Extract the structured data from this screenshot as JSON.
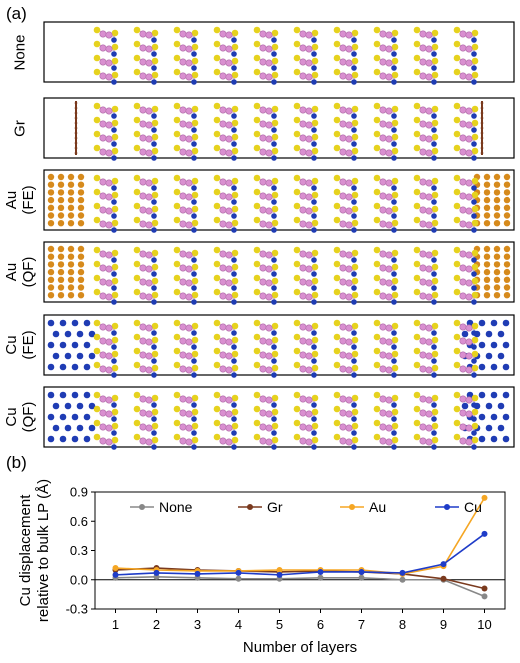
{
  "panel_a": {
    "label": "(a)",
    "rows": [
      {
        "label_lines": [
          "None"
        ],
        "left_electrode": "none",
        "right_electrode": "none"
      },
      {
        "label_lines": [
          "Gr"
        ],
        "left_electrode": "graphene",
        "right_electrode": "graphene"
      },
      {
        "label_lines": [
          "Au",
          "(FE)"
        ],
        "left_electrode": "gold",
        "right_electrode": "gold"
      },
      {
        "label_lines": [
          "Au",
          "(QF)"
        ],
        "left_electrode": "gold",
        "right_electrode": "gold"
      },
      {
        "label_lines": [
          "Cu",
          "(FE)"
        ],
        "left_electrode": "copper",
        "right_electrode": "copper"
      },
      {
        "label_lines": [
          "Cu",
          "(QF)"
        ],
        "left_electrode": "copper",
        "right_electrode": "copper"
      }
    ],
    "layer_count": 10,
    "colors": {
      "sulfur": "#e6d21e",
      "indium": "#d98fd0",
      "copper_atom": "#1f3cb4",
      "gold_atom": "#d68a1c",
      "graphene": "#7a3a1e"
    }
  },
  "panel_b": {
    "label": "(b)",
    "chart_data": {
      "type": "line",
      "xlabel": "Number of layers",
      "ylabel_lines": [
        "Cu displacement",
        "relative to bulk LP (Å)"
      ],
      "x": [
        1,
        2,
        3,
        4,
        5,
        6,
        7,
        8,
        9,
        10
      ],
      "xticks": [
        "1",
        "2",
        "3",
        "4",
        "5",
        "6",
        "7",
        "8",
        "9",
        "10"
      ],
      "ylim": [
        -0.3,
        0.9
      ],
      "yticks": [
        "-0.3",
        "0.0",
        "0.3",
        "0.6",
        "0.9"
      ],
      "ytick_values": [
        -0.3,
        0.0,
        0.3,
        0.6,
        0.9
      ],
      "legend_position": "top",
      "series": [
        {
          "name": "None",
          "color": "#888888",
          "values": [
            0.02,
            0.03,
            0.02,
            0.01,
            0.01,
            0.02,
            0.02,
            0.0,
            0.0,
            -0.17
          ]
        },
        {
          "name": "Gr",
          "color": "#7a3a1e",
          "values": [
            0.1,
            0.12,
            0.1,
            0.09,
            0.08,
            0.09,
            0.08,
            0.06,
            0.01,
            -0.09
          ]
        },
        {
          "name": "Au",
          "color": "#f5a623",
          "values": [
            0.12,
            0.1,
            0.09,
            0.09,
            0.1,
            0.1,
            0.1,
            0.06,
            0.14,
            0.84
          ]
        },
        {
          "name": "Cu",
          "color": "#1f3cc8",
          "values": [
            0.05,
            0.07,
            0.06,
            0.07,
            0.05,
            0.08,
            0.08,
            0.07,
            0.16,
            0.47
          ]
        }
      ]
    }
  }
}
